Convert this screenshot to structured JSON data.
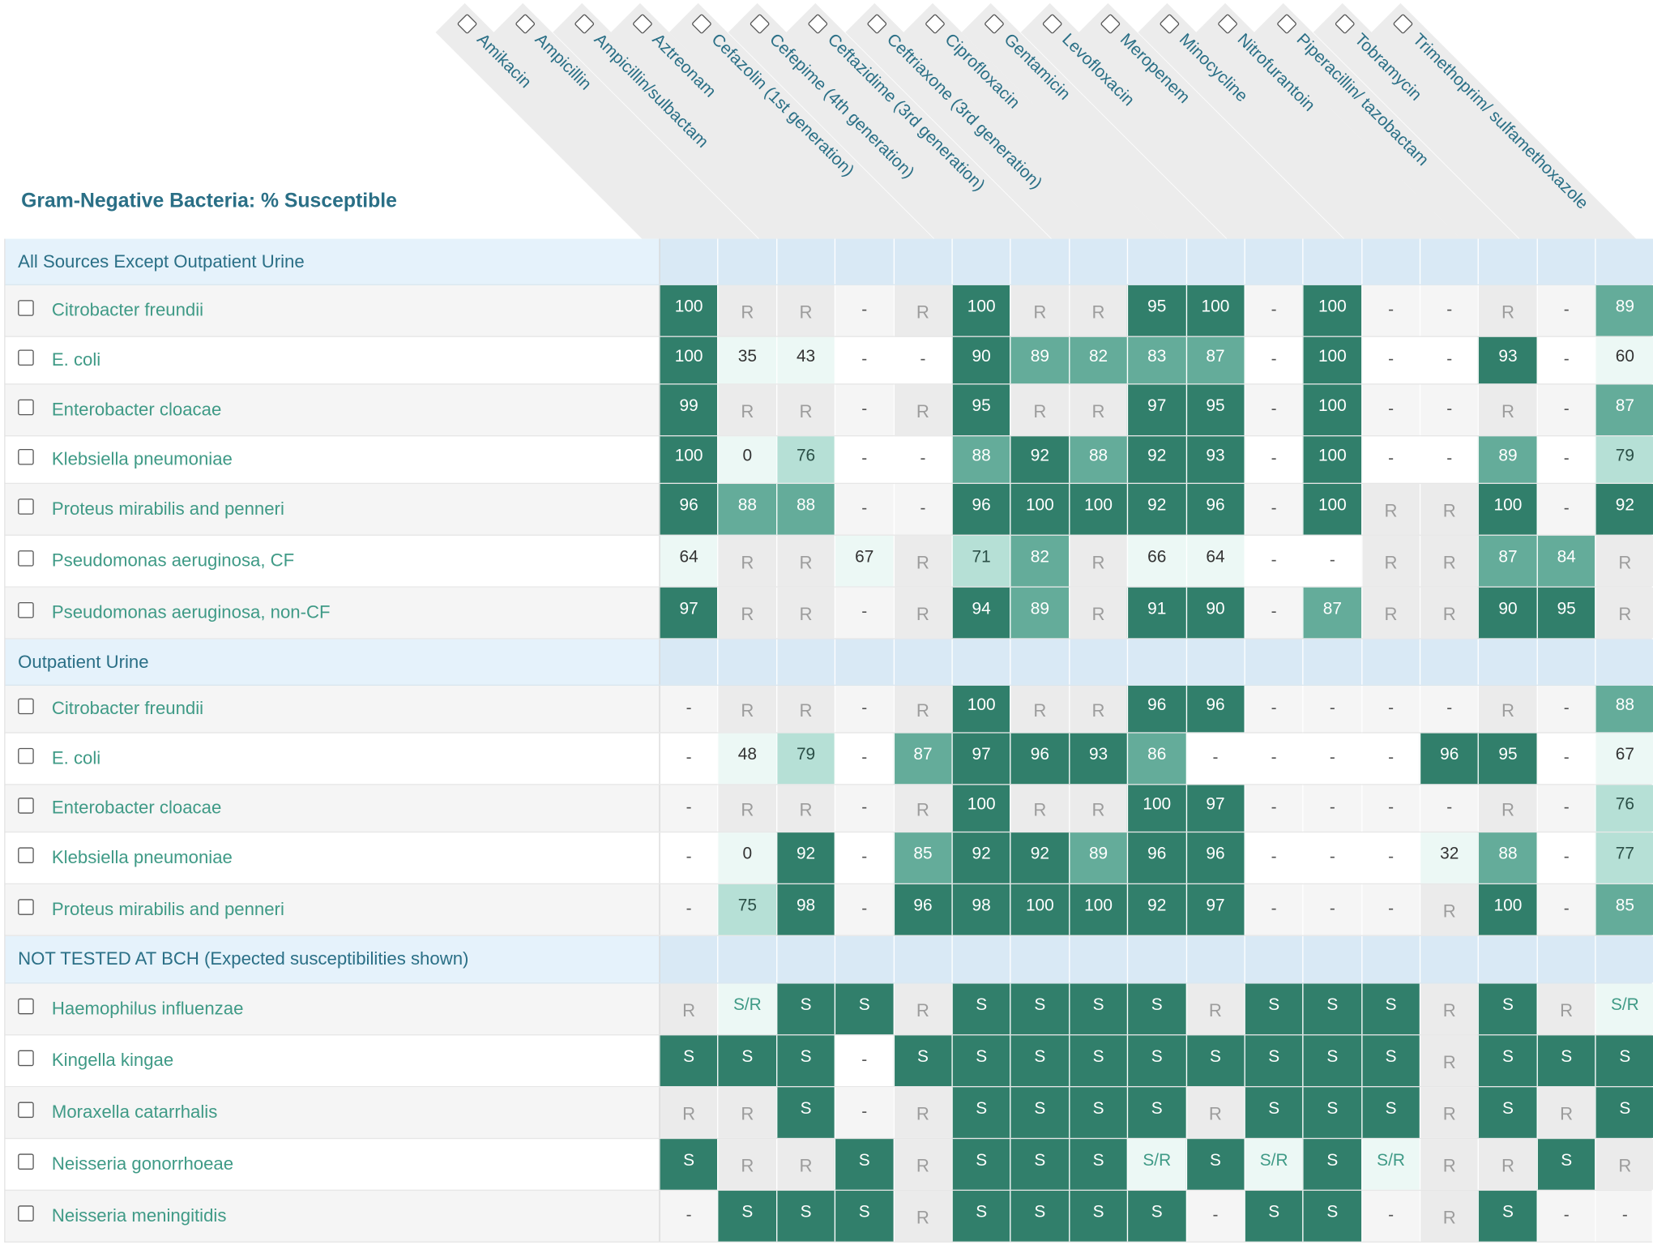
{
  "title": "Gram-Negative Bacteria: % Susceptible",
  "colors": {
    "strong": "#317f6b",
    "medium": "#64ac9a",
    "light": "#b6e0d6",
    "pale": "#ecf8f5",
    "resistant_bg": "#ebebeb",
    "group_bg": "#e5f2fb",
    "text_teal": "#3f9a86",
    "header_blue": "#2a6f86"
  },
  "antibiotics": [
    "Amikacin",
    "Ampicillin",
    "Ampicillin/sulbactam",
    "Aztreonam",
    "Cefazolin (1st generation)",
    "Cefepime (4th generation)",
    "Ceftazidime (3rd generation)",
    "Ceftriaxone (3rd generation)",
    "Ciprofloxacin",
    "Gentamicin",
    "Levofloxacin",
    "Meropenem",
    "Minocycline",
    "Nitrofurantoin",
    "Piperacillin/ tazobactam",
    "Tobramycin",
    "Trimethoprim/ sulfamethoxazole"
  ],
  "groups": [
    {
      "label": "All Sources Except Outpatient Urine",
      "organisms": [
        {
          "name": "Citrobacter freundii",
          "values": [
            "100",
            "R",
            "R",
            "-",
            "R",
            "100",
            "R",
            "R",
            "95",
            "100",
            "-",
            "100",
            "-",
            "-",
            "R",
            "-",
            "89"
          ]
        },
        {
          "name": "E. coli",
          "values": [
            "100",
            "35",
            "43",
            "-",
            "-",
            "90",
            "89",
            "82",
            "83",
            "87",
            "-",
            "100",
            "-",
            "-",
            "93",
            "-",
            "60"
          ]
        },
        {
          "name": "Enterobacter cloacae",
          "values": [
            "99",
            "R",
            "R",
            "-",
            "R",
            "95",
            "R",
            "R",
            "97",
            "95",
            "-",
            "100",
            "-",
            "-",
            "R",
            "-",
            "87"
          ]
        },
        {
          "name": "Klebsiella pneumoniae",
          "values": [
            "100",
            "0",
            "76",
            "-",
            "-",
            "88",
            "92",
            "88",
            "92",
            "93",
            "-",
            "100",
            "-",
            "-",
            "89",
            "-",
            "79"
          ]
        },
        {
          "name": "Proteus mirabilis and penneri",
          "values": [
            "96",
            "88",
            "88",
            "-",
            "-",
            "96",
            "100",
            "100",
            "92",
            "96",
            "-",
            "100",
            "R",
            "R",
            "100",
            "-",
            "92"
          ]
        },
        {
          "name": "Pseudomonas aeruginosa, CF",
          "values": [
            "64",
            "R",
            "R",
            "67",
            "R",
            "71",
            "82",
            "R",
            "66",
            "64",
            "-",
            "-",
            "R",
            "R",
            "87",
            "84",
            "R"
          ]
        },
        {
          "name": "Pseudomonas aeruginosa, non-CF",
          "values": [
            "97",
            "R",
            "R",
            "-",
            "R",
            "94",
            "89",
            "R",
            "91",
            "90",
            "-",
            "87",
            "R",
            "R",
            "90",
            "95",
            "R"
          ]
        }
      ]
    },
    {
      "label": "Outpatient Urine",
      "organisms": [
        {
          "name": "Citrobacter freundii",
          "values": [
            "-",
            "R",
            "R",
            "-",
            "R",
            "100",
            "R",
            "R",
            "96",
            "96",
            "-",
            "-",
            "-",
            "-",
            "R",
            "-",
            "88"
          ]
        },
        {
          "name": "E. coli",
          "values": [
            "-",
            "48",
            "79",
            "-",
            "87",
            "97",
            "96",
            "93",
            "86",
            "-",
            "-",
            "-",
            "-",
            "96",
            "95",
            "-",
            "67"
          ]
        },
        {
          "name": "Enterobacter cloacae",
          "values": [
            "-",
            "R",
            "R",
            "-",
            "R",
            "100",
            "R",
            "R",
            "100",
            "97",
            "-",
            "-",
            "-",
            "-",
            "R",
            "-",
            "76"
          ]
        },
        {
          "name": "Klebsiella pneumoniae",
          "values": [
            "-",
            "0",
            "92",
            "-",
            "85",
            "92",
            "92",
            "89",
            "96",
            "96",
            "-",
            "-",
            "-",
            "32",
            "88",
            "-",
            "77"
          ]
        },
        {
          "name": "Proteus mirabilis and penneri",
          "values": [
            "-",
            "75",
            "98",
            "-",
            "96",
            "98",
            "100",
            "100",
            "92",
            "97",
            "-",
            "-",
            "-",
            "R",
            "100",
            "-",
            "85"
          ]
        }
      ]
    },
    {
      "label": "NOT TESTED AT BCH (Expected susceptibilities shown)",
      "organisms": [
        {
          "name": "Haemophilus influenzae",
          "values": [
            "R",
            "S/R",
            "S",
            "S",
            "R",
            "S",
            "S",
            "S",
            "S",
            "R",
            "S",
            "S",
            "S",
            "R",
            "S",
            "R",
            "S/R"
          ]
        },
        {
          "name": "Kingella kingae",
          "values": [
            "S",
            "S",
            "S",
            "-",
            "S",
            "S",
            "S",
            "S",
            "S",
            "S",
            "S",
            "S",
            "S",
            "R",
            "S",
            "S",
            "S"
          ]
        },
        {
          "name": "Moraxella catarrhalis",
          "values": [
            "R",
            "R",
            "S",
            "-",
            "R",
            "S",
            "S",
            "S",
            "S",
            "R",
            "S",
            "S",
            "S",
            "R",
            "S",
            "R",
            "S"
          ]
        },
        {
          "name": "Neisseria gonorrhoeae",
          "values": [
            "S",
            "R",
            "R",
            "S",
            "R",
            "S",
            "S",
            "S",
            "S/R",
            "S",
            "S/R",
            "S",
            "S/R",
            "R",
            "R",
            "S",
            "R"
          ]
        },
        {
          "name": "Neisseria meningitidis",
          "values": [
            "-",
            "S",
            "S",
            "S",
            "R",
            "S",
            "S",
            "S",
            "S",
            "-",
            "S",
            "S",
            "-",
            "R",
            "S",
            "-",
            "-"
          ]
        }
      ]
    }
  ]
}
